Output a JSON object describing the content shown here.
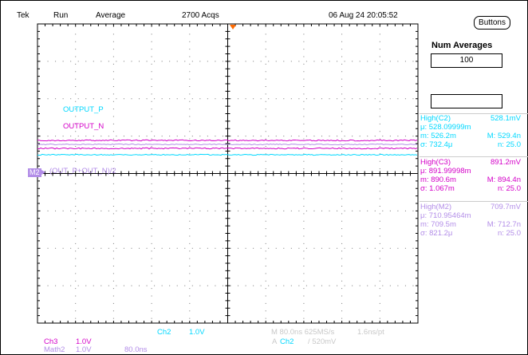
{
  "header": {
    "brand": "Tek",
    "run_state": "Run",
    "mode": "Average",
    "acqs": "2700 Acqs",
    "datetime": "06 Aug 24 20:05:52"
  },
  "side": {
    "buttons_label": "Buttons",
    "num_avg_title": "Num Averages",
    "num_avg_value": "100"
  },
  "waveform_labels": {
    "output_p": "OUTPUT_P",
    "output_n": "OUTPUT_N",
    "math_expr": "(OUT_P+OUT_N)/2",
    "math_marker": "M2"
  },
  "measurements": [
    {
      "title": "High(C2)",
      "title_value": "528.1mV",
      "mu": "μ: 528.09999m",
      "m": "m: 526.2m",
      "M": "M: 529.4n",
      "sigma": "σ: 732.4μ",
      "n": "n: 25.0",
      "color": "#00d8ff"
    },
    {
      "title": "High(C3)",
      "title_value": "891.2mV",
      "mu": "μ: 891.99998m",
      "m": "m: 890.6m",
      "M": "M: 894.4n",
      "sigma": "σ: 1.067m",
      "n": "n: 25.0",
      "color": "#d400c8"
    },
    {
      "title": "High(M2)",
      "title_value": "709.7mV",
      "mu": "μ: 710.95464m",
      "m": "m: 709.5m",
      "M": "M: 712.7n",
      "sigma": "σ: 821.2μ",
      "n": "n: 25.0",
      "color": "#b38ee8"
    }
  ],
  "bottom": {
    "ch2_label": "Ch2",
    "ch2_scale": "1.0V",
    "ch3_label": "Ch3",
    "ch3_scale": "1.0V",
    "math_label": "Math2",
    "math_scale": "1.0V",
    "math_time": "80.0ns",
    "timebase": "M 80.0ns 625MS/s",
    "sample": "1.6ns/pt",
    "trigger_marker": "A",
    "trigger_ch": "Ch2",
    "trigger_level": "/ 520mV"
  },
  "colors": {
    "ch2": "#00d8ff",
    "ch3": "#d400c8",
    "math": "#b38ee8",
    "faded": "#c8c8c8",
    "trigger": "#ff6a00"
  }
}
